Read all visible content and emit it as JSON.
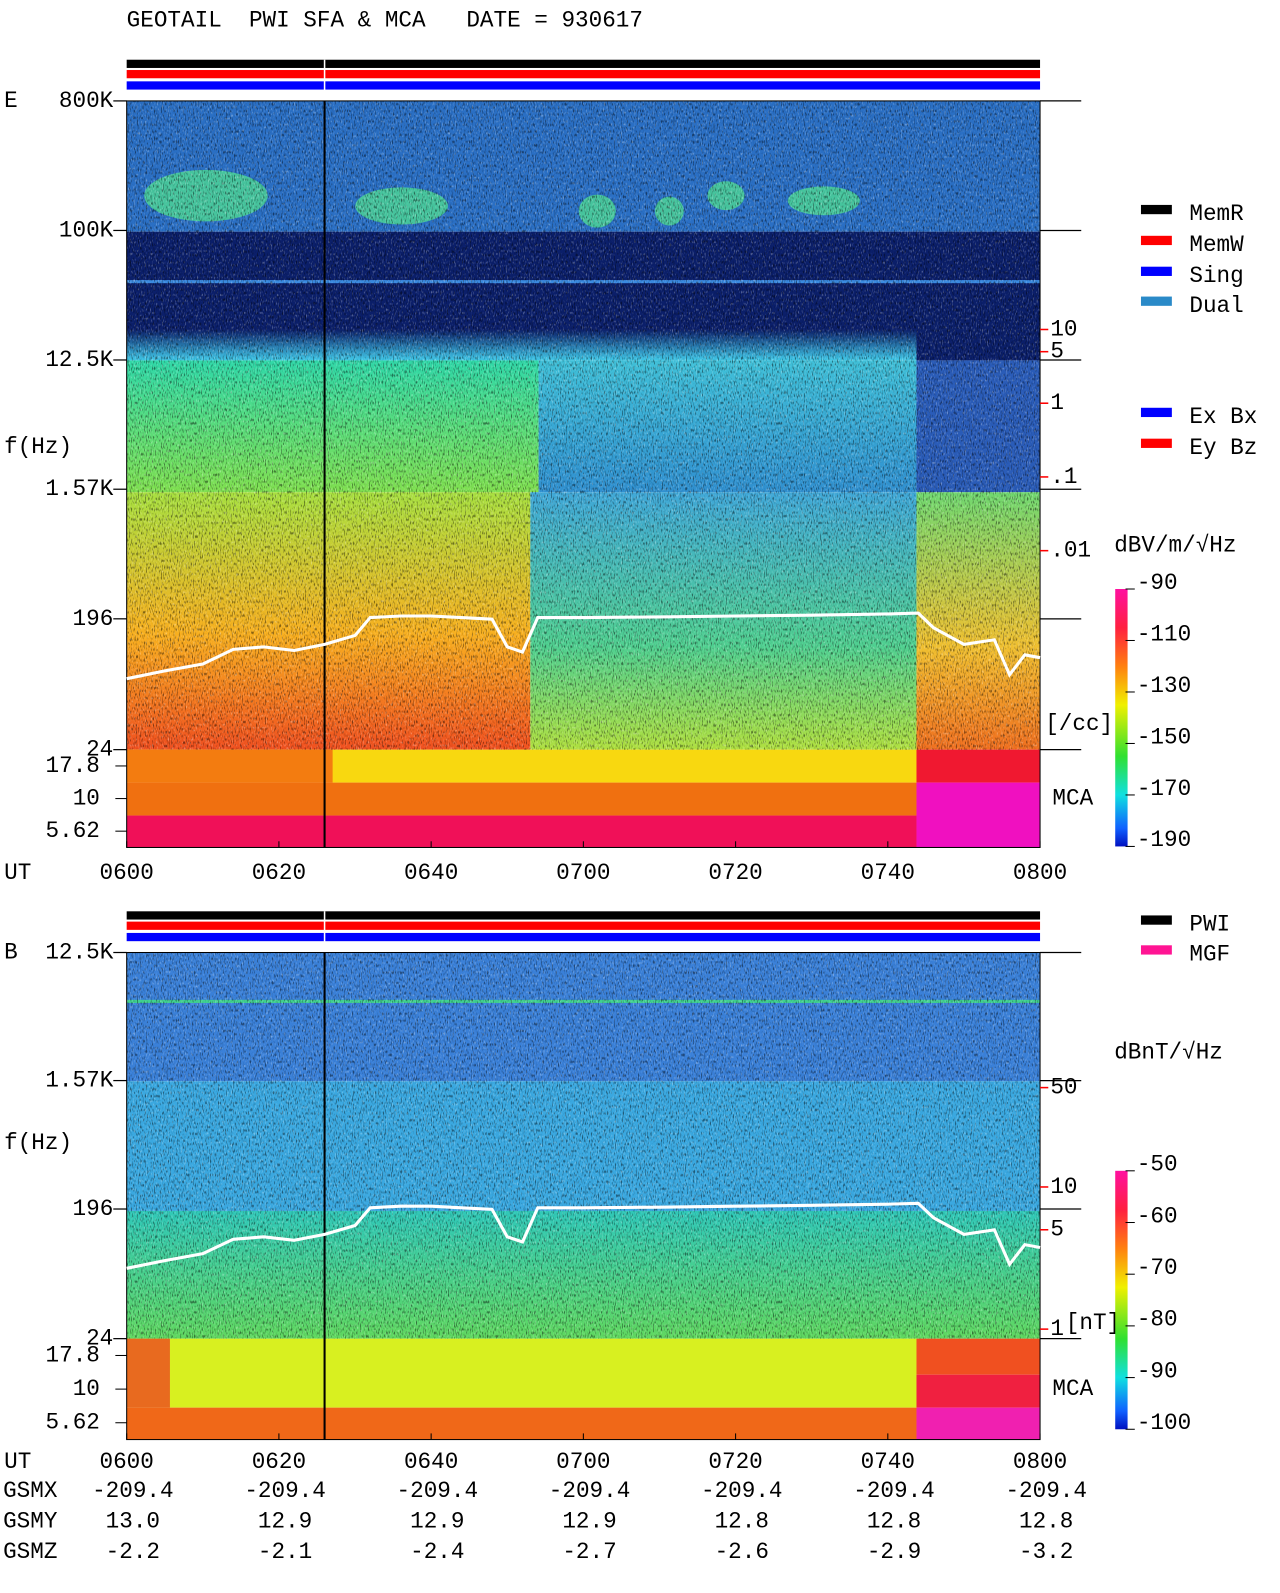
{
  "chart_data": [
    {
      "type": "spectrogram",
      "title": "GEOTAIL  PWI SFA & MCA   DATE = 930617",
      "panel_label": "E",
      "ylabel": "f(Hz)",
      "xlabel": "UT",
      "log_y": true,
      "ylim": [
        24,
        800000
      ],
      "yticks": [
        {
          "value": 800000,
          "label": "800K"
        },
        {
          "value": 100000,
          "label": "100K"
        },
        {
          "value": 12500,
          "label": "12.5K"
        },
        {
          "value": 1570,
          "label": "1.57K"
        },
        196,
        24
      ],
      "xlim": [
        0,
        120
      ],
      "xticks": [
        {
          "value": 0,
          "label": "0600"
        },
        {
          "value": 20,
          "label": "0620"
        },
        {
          "value": 40,
          "label": "0640"
        },
        {
          "value": 60,
          "label": "0700"
        },
        {
          "value": 80,
          "label": "0720"
        },
        {
          "value": 100,
          "label": "0740"
        },
        {
          "value": 120,
          "label": "0800"
        }
      ],
      "mca_label": "MCA",
      "mca_ticks": [
        17.8,
        10,
        5.62
      ],
      "y2_unit": "[/cc]",
      "y2_color": "#ff0000",
      "y2lim": [
        2e-05,
        12600
      ],
      "y2ticks": [
        10,
        5,
        1,
        {
          "value": 0.1,
          "label": ".1"
        },
        {
          "value": 0.01,
          "label": ".01"
        }
      ],
      "colorbar_label": "dBV/m/√Hz",
      "clim": [
        -190,
        -90
      ],
      "cticks": [
        -90,
        -110,
        -130,
        -150,
        -170,
        -190
      ],
      "legend": [
        {
          "name": "MemR",
          "color": "#000000"
        },
        {
          "name": "MemW",
          "color": "#ff0000"
        },
        {
          "name": "Sing",
          "color": "#0000ff"
        },
        {
          "name": "Dual",
          "color": "#2a8ac8"
        }
      ],
      "legend2": [
        {
          "name": "Ex Bx",
          "color": "#0000ff"
        },
        {
          "name": "Ey Bz",
          "color": "#ff0000"
        }
      ],
      "marker_x": 26,
      "line": {
        "color": "#ffffff",
        "x": [
          0,
          5,
          10,
          14,
          18,
          22,
          26,
          30,
          32,
          36,
          40,
          44,
          48,
          50,
          52,
          54,
          60,
          70,
          80,
          90,
          100,
          104,
          106,
          110,
          114,
          116,
          118,
          120
        ],
        "values": [
          75,
          85,
          95,
          120,
          125,
          118,
          130,
          150,
          200,
          205,
          205,
          200,
          195,
          125,
          115,
          200,
          200,
          202,
          205,
          208,
          212,
          215,
          170,
          130,
          140,
          80,
          110,
          105
        ]
      }
    },
    {
      "type": "spectrogram",
      "panel_label": "B",
      "ylabel": "f(Hz)",
      "xlabel": "UT",
      "log_y": true,
      "ylim": [
        24,
        12500
      ],
      "yticks": [
        {
          "value": 12500,
          "label": "12.5K"
        },
        {
          "value": 1570,
          "label": "1.57K"
        },
        196,
        24
      ],
      "xlim": [
        0,
        120
      ],
      "xticks": [
        {
          "value": 0,
          "label": "0600"
        },
        {
          "value": 20,
          "label": "0620"
        },
        {
          "value": 40,
          "label": "0640"
        },
        {
          "value": 60,
          "label": "0700"
        },
        {
          "value": 80,
          "label": "0720"
        },
        {
          "value": 100,
          "label": "0740"
        },
        {
          "value": 120,
          "label": "0800"
        }
      ],
      "mca_label": "MCA",
      "mca_ticks": [
        17.8,
        10,
        5.62
      ],
      "y2_unit": "[nT]",
      "y2_color": "#ff0000",
      "y2lim": [
        0.857,
        446
      ],
      "y2ticks": [
        50,
        10,
        5,
        1
      ],
      "colorbar_label": "dBnT/√Hz",
      "clim": [
        -100,
        -50
      ],
      "cticks": [
        -50,
        -60,
        -70,
        -80,
        -90,
        -100
      ],
      "legend": [
        {
          "name": "PWI",
          "color": "#000000"
        },
        {
          "name": "MGF",
          "color": "#ff1493"
        }
      ],
      "marker_x": 26,
      "line": {
        "color": "#ffffff",
        "x": [
          0,
          5,
          10,
          14,
          18,
          22,
          26,
          30,
          32,
          36,
          40,
          44,
          48,
          50,
          52,
          54,
          60,
          70,
          80,
          90,
          100,
          104,
          106,
          110,
          114,
          116,
          118,
          120
        ],
        "values": [
          75,
          85,
          95,
          120,
          125,
          118,
          130,
          150,
          200,
          205,
          205,
          200,
          195,
          125,
          115,
          200,
          200,
          202,
          205,
          208,
          212,
          215,
          170,
          130,
          140,
          80,
          110,
          105
        ]
      },
      "orbit": {
        "rows": [
          {
            "label": "GSMX",
            "values": [
              -209.4,
              -209.4,
              -209.4,
              -209.4,
              -209.4,
              -209.4,
              -209.4
            ]
          },
          {
            "label": "GSMY",
            "values": [
              13,
              12.9,
              12.9,
              12.9,
              12.8,
              12.8,
              12.8
            ],
            "value_labels": [
              "13.0",
              "12.9",
              "12.9",
              "12.9",
              "12.8",
              "12.8",
              "12.8"
            ]
          },
          {
            "label": "GSMZ",
            "values": [
              -2.2,
              -2.1,
              -2.4,
              -2.7,
              -2.6,
              -2.9,
              -3.2
            ]
          }
        ]
      }
    }
  ]
}
